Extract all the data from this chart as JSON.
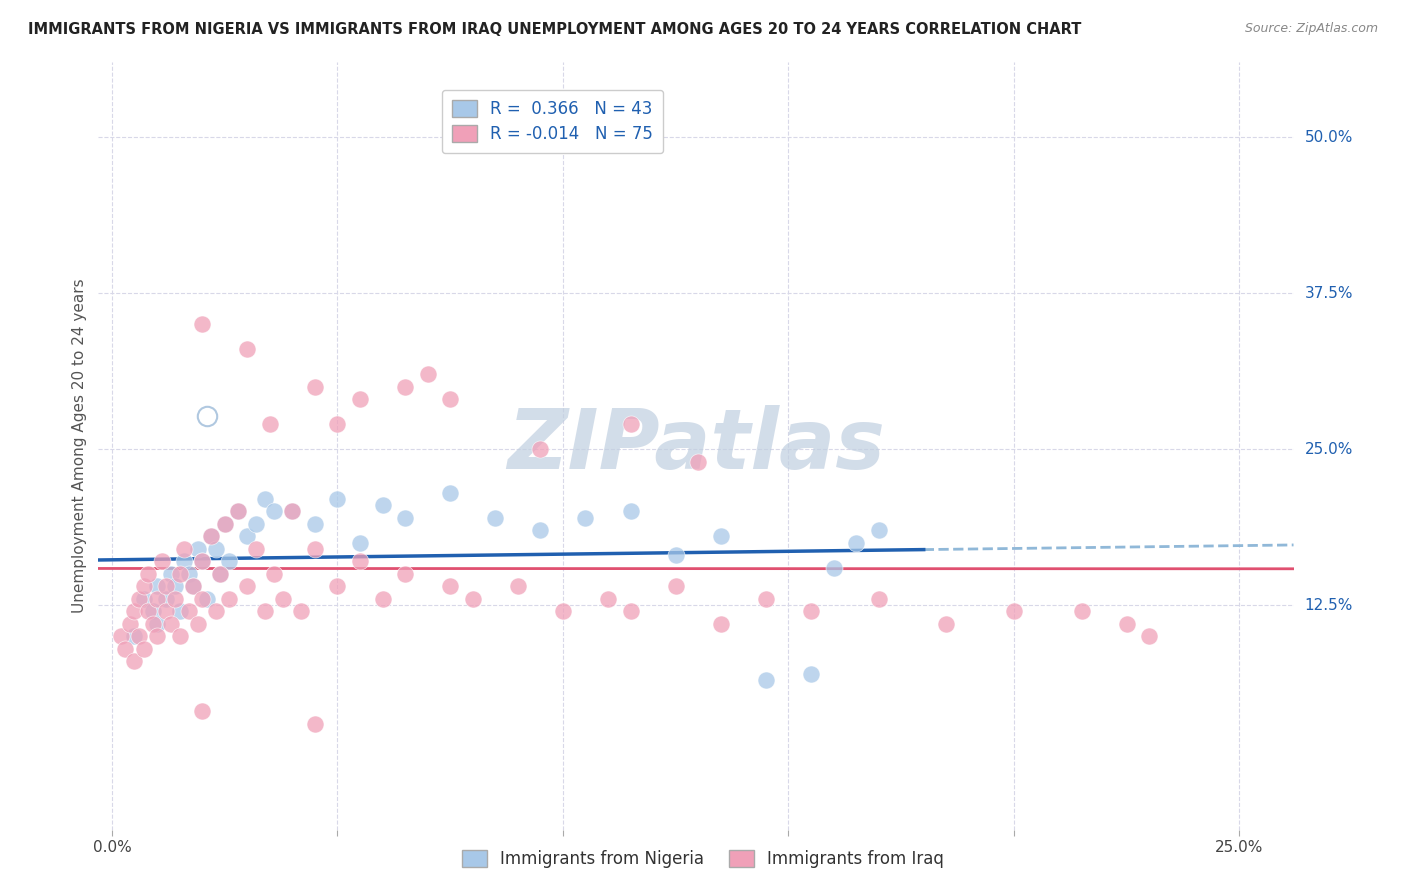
{
  "title": "IMMIGRANTS FROM NIGERIA VS IMMIGRANTS FROM IRAQ UNEMPLOYMENT AMONG AGES 20 TO 24 YEARS CORRELATION CHART",
  "source": "Source: ZipAtlas.com",
  "ylabel": "Unemployment Among Ages 20 to 24 years",
  "xlabel_nigeria": "Immigrants from Nigeria",
  "xlabel_iraq": "Immigrants from Iraq",
  "nigeria_R": 0.366,
  "nigeria_N": 43,
  "iraq_R": -0.014,
  "iraq_N": 75,
  "nigeria_color": "#a8c8e8",
  "iraq_color": "#f0a0b8",
  "nigeria_line_color": "#2060b0",
  "iraq_line_color": "#e05070",
  "nigeria_line_dash_color": "#90b8d8",
  "xlim": [
    -0.003,
    0.262
  ],
  "ylim": [
    -0.055,
    0.56
  ],
  "x_tick_vals": [
    0.0,
    0.05,
    0.1,
    0.15,
    0.2,
    0.25
  ],
  "x_tick_labels": [
    "0.0%",
    "",
    "",
    "",
    "",
    "25.0%"
  ],
  "y_tick_vals": [
    0.125,
    0.25,
    0.375,
    0.5
  ],
  "y_tick_labels": [
    "12.5%",
    "25.0%",
    "37.5%",
    "50.0%"
  ],
  "background_color": "#ffffff",
  "grid_color": "#d8d8e8",
  "watermark_text": "ZIPatlas",
  "watermark_color": "#c0cfe0",
  "nigeria_scatter_x": [
    0.005,
    0.007,
    0.009,
    0.01,
    0.01,
    0.012,
    0.013,
    0.014,
    0.015,
    0.016,
    0.017,
    0.018,
    0.019,
    0.02,
    0.021,
    0.022,
    0.023,
    0.024,
    0.025,
    0.026,
    0.028,
    0.03,
    0.032,
    0.034,
    0.036,
    0.04,
    0.045,
    0.05,
    0.055,
    0.06,
    0.065,
    0.075,
    0.085,
    0.095,
    0.105,
    0.115,
    0.125,
    0.135,
    0.145,
    0.155,
    0.16,
    0.165,
    0.17
  ],
  "nigeria_scatter_y": [
    0.1,
    0.13,
    0.12,
    0.11,
    0.14,
    0.13,
    0.15,
    0.14,
    0.12,
    0.16,
    0.15,
    0.14,
    0.17,
    0.16,
    0.13,
    0.18,
    0.17,
    0.15,
    0.19,
    0.16,
    0.2,
    0.18,
    0.19,
    0.21,
    0.2,
    0.2,
    0.19,
    0.21,
    0.175,
    0.205,
    0.195,
    0.215,
    0.195,
    0.185,
    0.195,
    0.2,
    0.165,
    0.18,
    0.065,
    0.07,
    0.155,
    0.175,
    0.185
  ],
  "iraq_scatter_x": [
    0.002,
    0.003,
    0.004,
    0.005,
    0.005,
    0.006,
    0.006,
    0.007,
    0.007,
    0.008,
    0.008,
    0.009,
    0.01,
    0.01,
    0.011,
    0.012,
    0.012,
    0.013,
    0.014,
    0.015,
    0.015,
    0.016,
    0.017,
    0.018,
    0.019,
    0.02,
    0.02,
    0.022,
    0.023,
    0.024,
    0.025,
    0.026,
    0.028,
    0.03,
    0.032,
    0.034,
    0.036,
    0.038,
    0.04,
    0.042,
    0.045,
    0.05,
    0.055,
    0.06,
    0.065,
    0.075,
    0.08,
    0.09,
    0.1,
    0.11,
    0.115,
    0.125,
    0.135,
    0.145,
    0.155,
    0.17,
    0.185,
    0.2,
    0.215,
    0.225,
    0.23,
    0.05,
    0.065,
    0.075,
    0.095,
    0.115,
    0.13,
    0.02,
    0.03,
    0.035,
    0.045,
    0.055,
    0.07,
    0.02,
    0.045
  ],
  "iraq_scatter_y": [
    0.1,
    0.09,
    0.11,
    0.12,
    0.08,
    0.13,
    0.1,
    0.14,
    0.09,
    0.12,
    0.15,
    0.11,
    0.13,
    0.1,
    0.16,
    0.12,
    0.14,
    0.11,
    0.13,
    0.15,
    0.1,
    0.17,
    0.12,
    0.14,
    0.11,
    0.16,
    0.13,
    0.18,
    0.12,
    0.15,
    0.19,
    0.13,
    0.2,
    0.14,
    0.17,
    0.12,
    0.15,
    0.13,
    0.2,
    0.12,
    0.17,
    0.14,
    0.16,
    0.13,
    0.15,
    0.14,
    0.13,
    0.14,
    0.12,
    0.13,
    0.12,
    0.14,
    0.11,
    0.13,
    0.12,
    0.13,
    0.11,
    0.12,
    0.12,
    0.11,
    0.1,
    0.27,
    0.3,
    0.29,
    0.25,
    0.27,
    0.24,
    0.35,
    0.33,
    0.27,
    0.3,
    0.29,
    0.31,
    0.04,
    0.03
  ]
}
